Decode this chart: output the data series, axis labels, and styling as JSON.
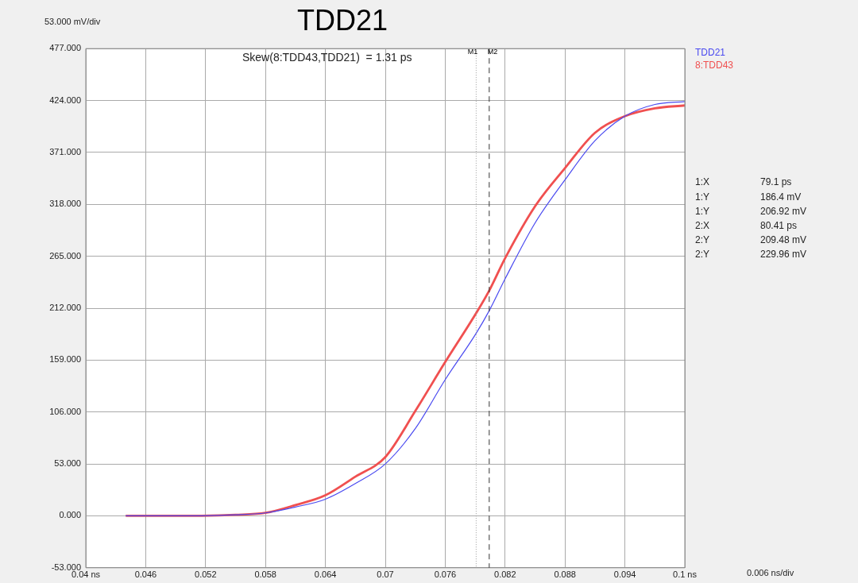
{
  "chart_data": {
    "type": "line",
    "title": "TDD21",
    "x": [
      0.044,
      0.05,
      0.055,
      0.058,
      0.061,
      0.064,
      0.067,
      0.07,
      0.073,
      0.076,
      0.0791,
      0.08041,
      0.082,
      0.085,
      0.088,
      0.091,
      0.094,
      0.097,
      0.1
    ],
    "series": [
      {
        "name": "TDD21",
        "color": "#4a4af0",
        "values": [
          0,
          0,
          1,
          3,
          9,
          17,
          33,
          53,
          89,
          139,
          186.4,
          209.48,
          242,
          299,
          343,
          383,
          408,
          420,
          423
        ]
      },
      {
        "name": "8:TDD43",
        "color": "#f05050",
        "values": [
          0,
          0,
          1,
          3,
          11,
          21,
          40,
          60,
          107,
          157,
          206.92,
          229.96,
          263,
          316,
          355,
          391,
          408,
          416,
          419
        ]
      }
    ],
    "xlim": [
      0.04,
      0.1
    ],
    "xticks": [
      {
        "value": 0.04,
        "label": "0.04 ns"
      },
      0.046,
      0.052,
      0.058,
      0.064,
      0.07,
      0.076,
      0.082,
      0.088,
      0.094,
      {
        "value": 0.1,
        "label": "0.1 ns"
      }
    ],
    "ylim": [
      -53,
      477
    ],
    "yticks": [
      {
        "value": -53,
        "label": "-53.000"
      },
      {
        "value": 0,
        "label": "0.000"
      },
      {
        "value": 53,
        "label": "53.000"
      },
      {
        "value": 106,
        "label": "106.000"
      },
      {
        "value": 159,
        "label": "159.000"
      },
      {
        "value": 212,
        "label": "212.000"
      },
      {
        "value": 265,
        "label": "265.000"
      },
      {
        "value": 318,
        "label": "318.000"
      },
      {
        "value": 371,
        "label": "371.000"
      },
      {
        "value": 424,
        "label": "424.000"
      },
      {
        "value": 477,
        "label": "477.000"
      }
    ],
    "grid": true,
    "legend": "top right",
    "ref_lines": [
      {
        "axis": "x",
        "value": 0.0791,
        "label": "M1",
        "color": "#999999",
        "line_style": "dotted"
      },
      {
        "axis": "x",
        "value": 0.08041,
        "label": "M2",
        "color": "#333333",
        "line_style": "dashed"
      }
    ],
    "annotations": [
      "53.000 mV/div",
      "0.006 ns/div",
      "Skew(8:TDD43,TDD21)  = 1.31 ps",
      "1:X 79.1 ps",
      "1:Y 186.4 mV",
      "1:Y 206.92 mV",
      "2:X 80.41 ps",
      "2:Y 209.48 mV",
      "2:Y 229.96 mV"
    ]
  }
}
